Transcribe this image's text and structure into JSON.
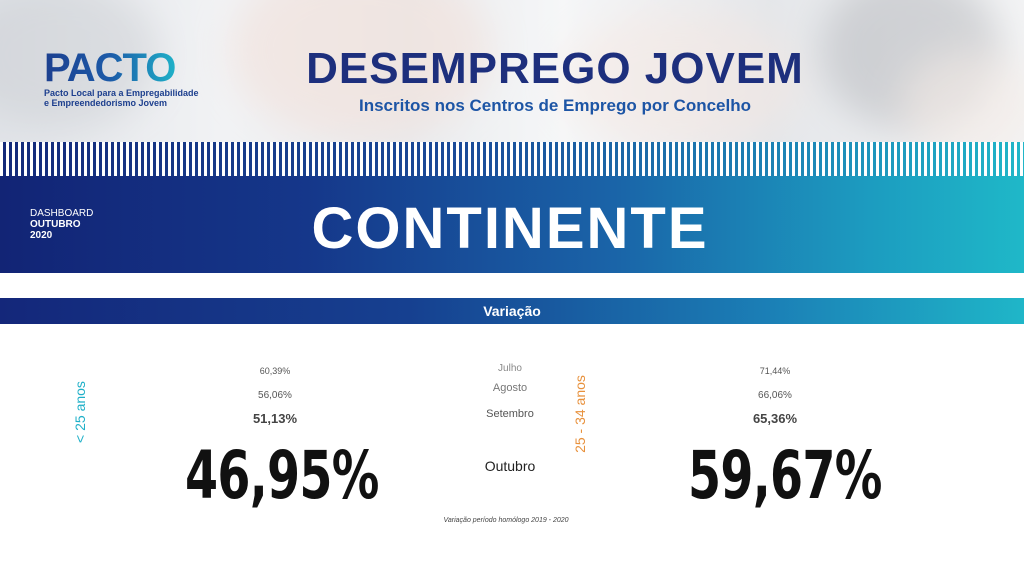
{
  "header": {
    "logo_word": "PACTO",
    "logo_line1": "Pacto Local para a Empregabilidade",
    "logo_line2": "e Empreendedorismo Jovem",
    "title": "DESEMPREGO JOVEM",
    "subtitle": "Inscritos nos Centros de Emprego por Concelho"
  },
  "banner": {
    "dashboard_label": "DASHBOARD",
    "month": "OUTUBRO",
    "year": "2020",
    "region": "CONTINENTE"
  },
  "section": {
    "title": "Variação"
  },
  "months": [
    "Julho",
    "Agosto",
    "Setembro",
    "Outubro"
  ],
  "groups": {
    "young": {
      "label": "< 25 anos",
      "history": [
        "60,39%",
        "56,06%",
        "51,13%"
      ],
      "current": "46,95%"
    },
    "adult": {
      "label": "25 - 34 anos",
      "history": [
        "71,44%",
        "66,06%",
        "65,36%"
      ],
      "current": "59,67%"
    }
  },
  "footnote": "Variação período homólogo 2019 - 2020",
  "colors": {
    "navy": "#1d2f7d",
    "teal": "#1fb0c8",
    "orange": "#e8913c"
  }
}
